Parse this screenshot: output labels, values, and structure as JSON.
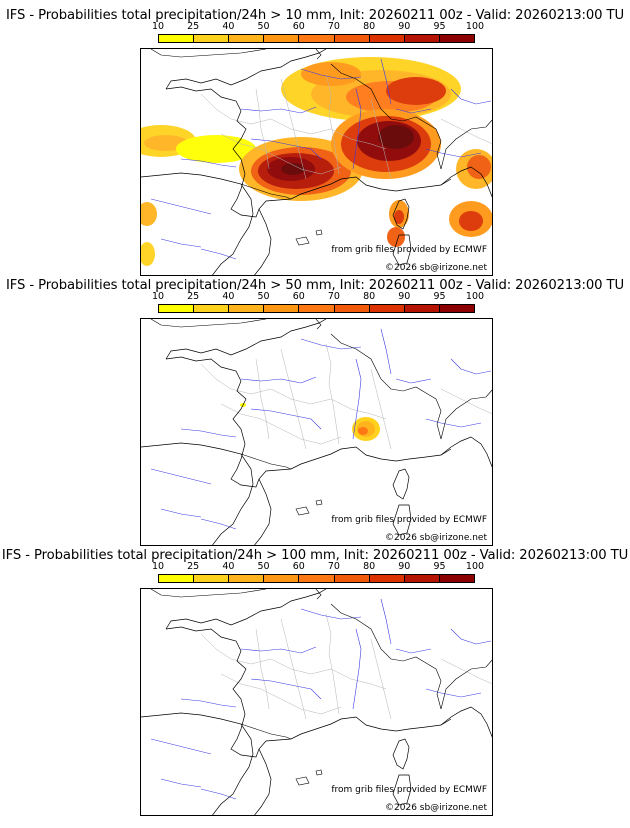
{
  "colorbar": {
    "ticks": [
      "10",
      "25",
      "40",
      "50",
      "60",
      "70",
      "80",
      "90",
      "95",
      "100"
    ],
    "colors": [
      "#ffff00",
      "#ffd21e",
      "#ffb41e",
      "#ff9614",
      "#ff7814",
      "#f05a0a",
      "#dc3200",
      "#b41400",
      "#8c0000",
      "#640000"
    ]
  },
  "panels": [
    {
      "title": "IFS - Probabilities total precipitation/24h > 10 mm, Init: 20260211 00z - Valid: 20260213:00 TU",
      "credit_source": "from grib files provided by ECMWF",
      "credit_copy": "©2026 sb@irizone.net"
    },
    {
      "title": "IFS - Probabilities total precipitation/24h > 50 mm, Init: 20260211 00z - Valid: 20260213:00 TU",
      "credit_source": "from grib files provided by ECMWF",
      "credit_copy": "©2026 sb@irizone.net"
    },
    {
      "title": "IFS - Probabilities total precipitation/24h > 100 mm, Init: 20260211 00z - Valid: 20260213:00 TU",
      "credit_source": "from grib files provided by ECMWF",
      "credit_copy": "©2026 sb@irizone.net"
    }
  ]
}
